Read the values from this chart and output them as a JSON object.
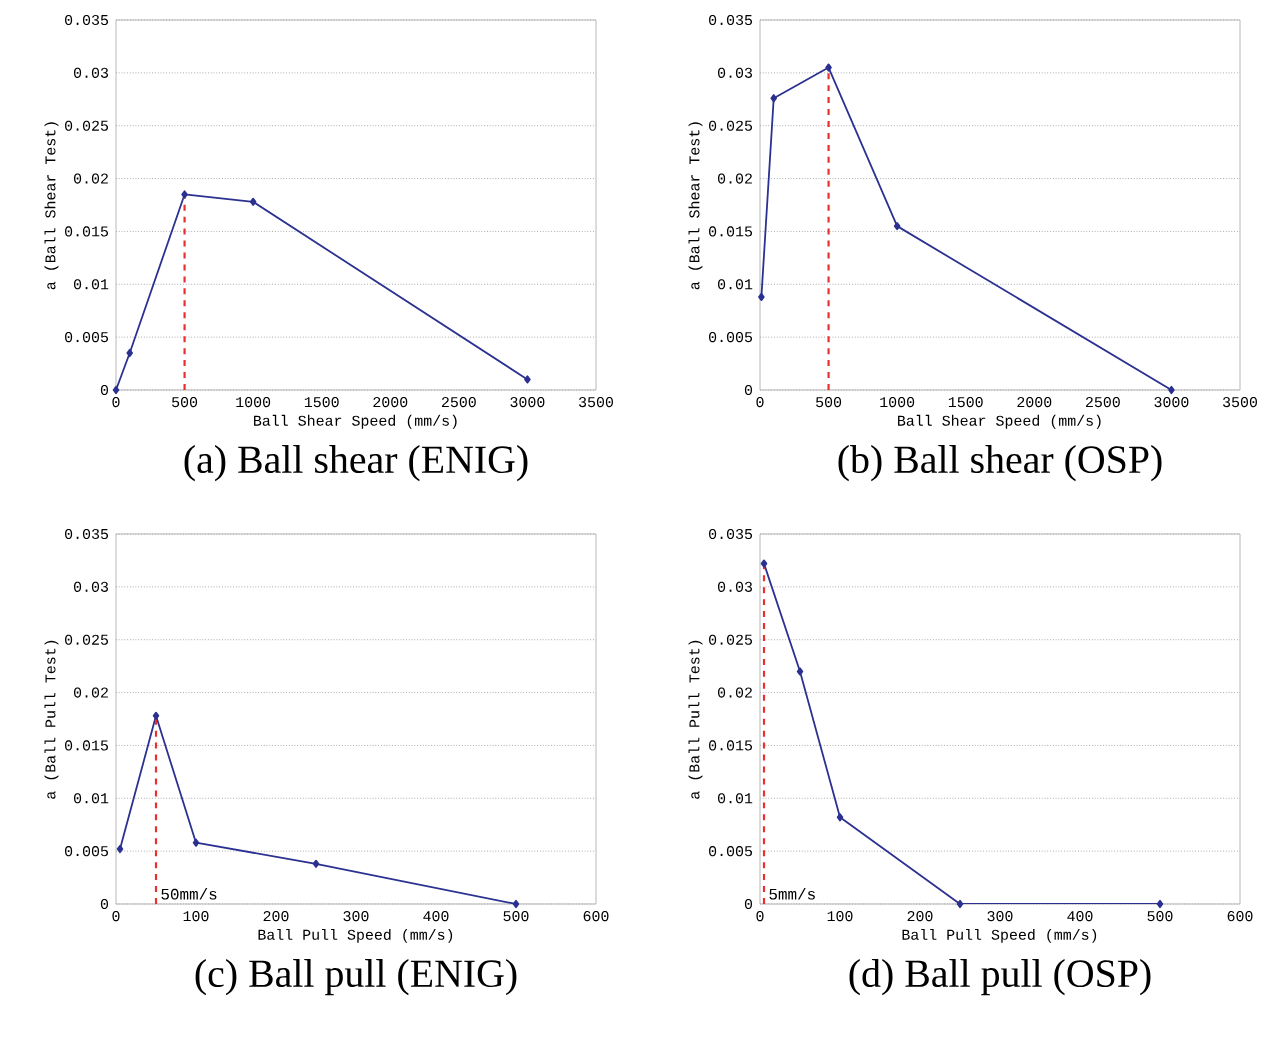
{
  "chart_data": [
    {
      "type": "line",
      "title": "(a) Ball shear (ENIG)",
      "xlabel": "Ball Shear Speed (mm/s)",
      "ylabel": "a (Ball Shear Test)",
      "xlim": [
        0,
        3500
      ],
      "xticks": [
        0,
        500,
        1000,
        1500,
        2000,
        2500,
        3000,
        3500
      ],
      "ylim": [
        0,
        0.035
      ],
      "yticks": [
        0,
        0.005,
        0.01,
        0.015,
        0.02,
        0.025,
        0.03,
        0.035
      ],
      "grid": "y",
      "marker": "diamond",
      "line_style": "solid",
      "x": [
        0,
        100,
        500,
        1000,
        3000
      ],
      "series": [
        {
          "color": "#2b3190",
          "values": [
            0,
            0.0035,
            0.0185,
            0.0178,
            0.001
          ]
        }
      ],
      "ref_lines": [
        {
          "axis": "x",
          "value": 500,
          "color": "#e8312f",
          "line_style": "dashed"
        }
      ]
    },
    {
      "type": "line",
      "title": "(b) Ball shear (OSP)",
      "xlabel": "Ball Shear Speed (mm/s)",
      "ylabel": "a (Ball Shear Test)",
      "xlim": [
        0,
        3500
      ],
      "xticks": [
        0,
        500,
        1000,
        1500,
        2000,
        2500,
        3000,
        3500
      ],
      "ylim": [
        0,
        0.035
      ],
      "yticks": [
        0,
        0.005,
        0.01,
        0.015,
        0.02,
        0.025,
        0.03,
        0.035
      ],
      "grid": "y",
      "marker": "diamond",
      "line_style": "solid",
      "x": [
        10,
        100,
        500,
        1000,
        3000
      ],
      "series": [
        {
          "color": "#2b3190",
          "values": [
            0.0088,
            0.0276,
            0.0305,
            0.0155,
            0
          ]
        }
      ],
      "ref_lines": [
        {
          "axis": "x",
          "value": 500,
          "color": "#e8312f",
          "line_style": "dashed"
        }
      ]
    },
    {
      "type": "line",
      "title": "(c) Ball pull (ENIG)",
      "xlabel": "Ball Pull Speed (mm/s)",
      "ylabel": "a (Ball Pull Test)",
      "xlim": [
        0,
        600
      ],
      "xticks": [
        0,
        100,
        200,
        300,
        400,
        500,
        600
      ],
      "ylim": [
        0,
        0.035
      ],
      "yticks": [
        0,
        0.005,
        0.01,
        0.015,
        0.02,
        0.025,
        0.03,
        0.035
      ],
      "grid": "y",
      "marker": "diamond",
      "line_style": "solid",
      "x": [
        5,
        50,
        100,
        250,
        500
      ],
      "series": [
        {
          "color": "#2b3190",
          "values": [
            0.0052,
            0.0178,
            0.0058,
            0.0038,
            0
          ]
        }
      ],
      "ref_lines": [
        {
          "axis": "x",
          "value": 50,
          "label": "50mm/s",
          "color": "#e8312f",
          "line_style": "dashed"
        }
      ]
    },
    {
      "type": "line",
      "title": "(d) Ball pull (OSP)",
      "xlabel": "Ball Pull Speed (mm/s)",
      "ylabel": "a (Ball Pull Test)",
      "xlim": [
        0,
        600
      ],
      "xticks": [
        0,
        100,
        200,
        300,
        400,
        500,
        600
      ],
      "ylim": [
        0,
        0.035
      ],
      "yticks": [
        0,
        0.005,
        0.01,
        0.015,
        0.02,
        0.025,
        0.03,
        0.035
      ],
      "grid": "y",
      "marker": "diamond",
      "line_style": "solid",
      "x": [
        5,
        50,
        100,
        250,
        500
      ],
      "series": [
        {
          "color": "#2b3190",
          "values": [
            0.0322,
            0.022,
            0.0082,
            0,
            0
          ]
        }
      ],
      "ref_lines": [
        {
          "axis": "x",
          "value": 5,
          "label": "5mm/s",
          "color": "#e8312f",
          "line_style": "dashed"
        }
      ]
    }
  ]
}
